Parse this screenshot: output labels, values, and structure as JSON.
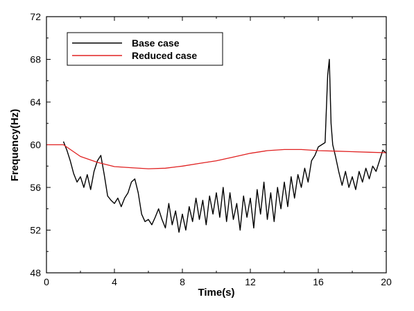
{
  "chart_data": {
    "type": "line",
    "xlabel": "Time(s)",
    "ylabel": "Frequency(Hz)",
    "xlim": [
      0,
      20
    ],
    "ylim": [
      48,
      72
    ],
    "xticks": [
      0,
      4,
      8,
      12,
      16,
      20
    ],
    "yticks": [
      48,
      52,
      56,
      60,
      64,
      68,
      72
    ],
    "xtick_labels": [
      "0",
      "4",
      "8",
      "12",
      "16",
      "20"
    ],
    "ytick_labels": [
      "48",
      "52",
      "56",
      "60",
      "64",
      "68",
      "72"
    ],
    "grid": false,
    "legend_position": "top-left",
    "series": [
      {
        "name": "Base case",
        "color": "#000000",
        "x": [
          1.0,
          1.2,
          1.4,
          1.6,
          1.8,
          2.0,
          2.2,
          2.4,
          2.6,
          2.8,
          3.0,
          3.2,
          3.4,
          3.6,
          3.8,
          4.0,
          4.2,
          4.4,
          4.6,
          4.8,
          5.0,
          5.2,
          5.4,
          5.6,
          5.8,
          6.0,
          6.2,
          6.4,
          6.6,
          6.8,
          7.0,
          7.2,
          7.4,
          7.6,
          7.8,
          8.0,
          8.2,
          8.4,
          8.6,
          8.8,
          9.0,
          9.2,
          9.4,
          9.6,
          9.8,
          10.0,
          10.2,
          10.4,
          10.6,
          10.8,
          11.0,
          11.2,
          11.4,
          11.6,
          11.8,
          12.0,
          12.2,
          12.4,
          12.6,
          12.8,
          13.0,
          13.2,
          13.4,
          13.6,
          13.8,
          14.0,
          14.2,
          14.4,
          14.6,
          14.8,
          15.0,
          15.2,
          15.4,
          15.6,
          15.8,
          16.0,
          16.2,
          16.4,
          16.55,
          16.65,
          16.75,
          16.85,
          17.0,
          17.2,
          17.4,
          17.6,
          17.8,
          18.0,
          18.2,
          18.4,
          18.6,
          18.8,
          19.0,
          19.2,
          19.4,
          19.6,
          19.8,
          20.0
        ],
        "values": [
          60.3,
          59.5,
          58.5,
          57.3,
          56.5,
          57.0,
          56.0,
          57.2,
          55.8,
          57.5,
          58.5,
          59.0,
          57.2,
          55.2,
          54.8,
          54.5,
          55.0,
          54.2,
          55.0,
          55.5,
          56.5,
          56.8,
          55.5,
          53.5,
          52.8,
          53.0,
          52.5,
          53.2,
          54.0,
          53.0,
          52.2,
          54.5,
          52.5,
          53.8,
          51.8,
          53.5,
          52.0,
          54.2,
          52.8,
          55.0,
          53.0,
          54.8,
          52.5,
          55.2,
          53.5,
          55.5,
          53.2,
          56.0,
          52.8,
          55.5,
          53.0,
          54.5,
          52.0,
          55.2,
          53.2,
          55.0,
          52.2,
          55.8,
          53.5,
          56.5,
          53.0,
          55.5,
          52.8,
          56.0,
          54.0,
          56.5,
          54.2,
          57.0,
          55.0,
          57.2,
          56.0,
          57.8,
          56.5,
          58.5,
          59.0,
          59.8,
          60.0,
          60.2,
          66.5,
          68.0,
          62.0,
          60.0,
          59.0,
          57.5,
          56.2,
          57.5,
          56.0,
          57.0,
          55.8,
          57.5,
          56.5,
          57.8,
          56.8,
          58.0,
          57.5,
          58.5,
          59.5,
          59.2
        ]
      },
      {
        "name": "Reduced case",
        "color": "#e02020",
        "x": [
          0,
          1,
          2,
          3,
          4,
          5,
          6,
          7,
          8,
          9,
          10,
          11,
          12,
          13,
          14,
          15,
          16,
          17,
          18,
          19,
          20
        ],
        "values": [
          60.0,
          60.0,
          58.9,
          58.35,
          57.95,
          57.85,
          57.75,
          57.8,
          58.0,
          58.25,
          58.5,
          58.85,
          59.2,
          59.45,
          59.55,
          59.55,
          59.45,
          59.4,
          59.35,
          59.3,
          59.25
        ]
      }
    ]
  }
}
